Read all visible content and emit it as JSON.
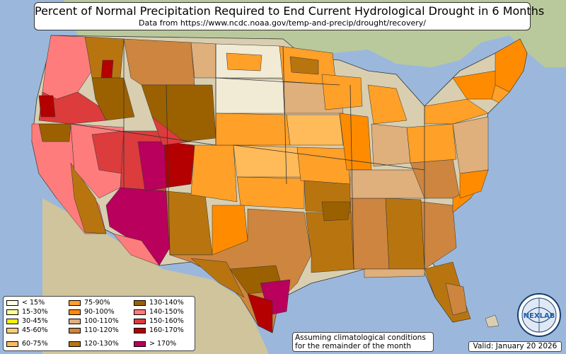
{
  "header": {
    "title": "Percent of Normal Precipitation Required to End Current Hydrological Drought in 6 Months",
    "subtitle": "Data from https://www.ncdc.noaa.gov/temp-and-precip/drought/recovery/"
  },
  "legend": {
    "items": [
      {
        "label": "< 15%",
        "color": "#fffde0"
      },
      {
        "label": "15-30%",
        "color": "#ffff99"
      },
      {
        "label": "30-45%",
        "color": "#ffee00"
      },
      {
        "label": "45-60%",
        "color": "#f9cd7c"
      },
      {
        "label": "60-75%",
        "color": "#ffba5a"
      },
      {
        "label": "75-90%",
        "color": "#ffa028"
      },
      {
        "label": "90-100%",
        "color": "#ff8c00"
      },
      {
        "label": "100-110%",
        "color": "#dfaf7c"
      },
      {
        "label": "110-120%",
        "color": "#cd853f"
      },
      {
        "label": "120-130%",
        "color": "#b8750f"
      },
      {
        "label": "130-140%",
        "color": "#9b6100"
      },
      {
        "label": "140-150%",
        "color": "#ff7c7c"
      },
      {
        "label": "150-160%",
        "color": "#dc3c3c"
      },
      {
        "label": "160-170%",
        "color": "#b40000"
      },
      {
        "label": "> 170%",
        "color": "#b8005c"
      }
    ]
  },
  "note": {
    "line1": "Assuming climatological conditions",
    "line2": "for the remainder of the month"
  },
  "valid_text": "Valid: January 20 2026",
  "logo": {
    "text": "NEXLAB"
  },
  "colors": {
    "ocean": "#9bb8dc",
    "land": "#d9cfb0",
    "canada": "#b9c99c",
    "nodata": "#f1ead4"
  }
}
